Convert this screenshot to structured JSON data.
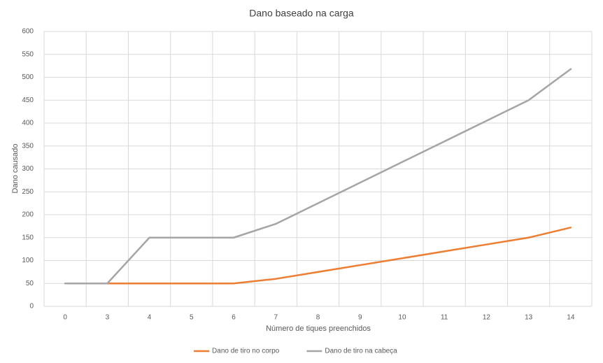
{
  "chart_data": {
    "type": "line",
    "title": "Dano baseado na carga",
    "x_label": "Número de tiques preenchidos",
    "y_label": "Dano causado",
    "categories": [
      "0",
      "3",
      "4",
      "5",
      "6",
      "7",
      "8",
      "9",
      "10",
      "11",
      "12",
      "13",
      "14"
    ],
    "series": [
      {
        "name": "Dano de tiro no corpo",
        "color": "#ed7d31",
        "values": [
          50,
          50,
          50,
          50,
          50,
          60,
          75,
          90,
          105,
          120,
          135,
          150,
          172
        ]
      },
      {
        "name": "Dano de tiro na cabeça",
        "color": "#a5a5a5",
        "values": [
          50,
          50,
          150,
          150,
          150,
          180,
          225,
          270,
          315,
          360,
          405,
          450,
          518
        ]
      }
    ],
    "ylim": [
      0,
      600
    ],
    "yticks": [
      0,
      50,
      100,
      150,
      200,
      250,
      300,
      350,
      400,
      450,
      500,
      550,
      600
    ],
    "grid": true,
    "legend": "bottom"
  }
}
